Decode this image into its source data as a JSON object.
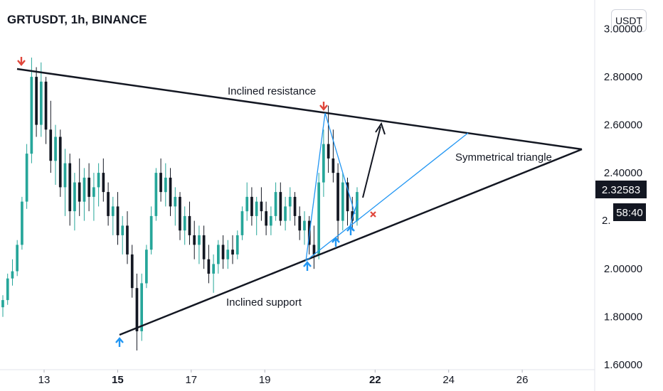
{
  "header": {
    "title": "GRTUSDT, 1h, BINANCE",
    "currency_button": "USDT"
  },
  "chart_data": {
    "type": "candlestick",
    "symbol": "GRTUSDT",
    "interval": "1h",
    "exchange": "BINANCE",
    "y_ticks": [
      "3.00000",
      "2.80000",
      "2.60000",
      "2.40000",
      "2.00000",
      "1.80000",
      "1.60000"
    ],
    "y_range": [
      1.58,
      3.12
    ],
    "x_ticks": [
      {
        "label": "13",
        "day": 13,
        "bold": false
      },
      {
        "label": "15",
        "day": 15,
        "bold": true
      },
      {
        "label": "17",
        "day": 17,
        "bold": false
      },
      {
        "label": "19",
        "day": 19,
        "bold": false
      },
      {
        "label": "22",
        "day": 22,
        "bold": true
      },
      {
        "label": "24",
        "day": 24,
        "bold": false
      },
      {
        "label": "26",
        "day": 26,
        "bold": false
      }
    ],
    "current_price": "2.32583",
    "current_price_value": 2.32583,
    "countdown": "58:40",
    "countdown_partial_label": "2.",
    "colors": {
      "up": "#26a69a",
      "down": "#131722",
      "wick": "#131722",
      "marker_down": "#e0463b",
      "marker_up": "#2196f3",
      "trendline": "#131722",
      "channel": "#2196f3"
    },
    "candles": [
      [
        1.84,
        1.89,
        1.8,
        1.87
      ],
      [
        1.87,
        1.98,
        1.85,
        1.96
      ],
      [
        1.96,
        2.04,
        1.93,
        1.99
      ],
      [
        1.99,
        2.12,
        1.97,
        2.1
      ],
      [
        2.1,
        2.3,
        2.08,
        2.28
      ],
      [
        2.28,
        2.52,
        2.25,
        2.48
      ],
      [
        2.48,
        2.88,
        2.44,
        2.8
      ],
      [
        2.8,
        2.84,
        2.55,
        2.6
      ],
      [
        2.6,
        2.86,
        2.55,
        2.78
      ],
      [
        2.78,
        2.8,
        2.52,
        2.58
      ],
      [
        2.58,
        2.7,
        2.4,
        2.45
      ],
      [
        2.45,
        2.6,
        2.35,
        2.55
      ],
      [
        2.55,
        2.58,
        2.3,
        2.34
      ],
      [
        2.34,
        2.5,
        2.22,
        2.44
      ],
      [
        2.44,
        2.48,
        2.18,
        2.24
      ],
      [
        2.24,
        2.4,
        2.16,
        2.36
      ],
      [
        2.36,
        2.46,
        2.22,
        2.28
      ],
      [
        2.28,
        2.42,
        2.2,
        2.38
      ],
      [
        2.38,
        2.44,
        2.24,
        2.3
      ],
      [
        2.3,
        2.4,
        2.2,
        2.34
      ],
      [
        2.34,
        2.44,
        2.26,
        2.4
      ],
      [
        2.4,
        2.46,
        2.28,
        2.32
      ],
      [
        2.32,
        2.36,
        2.18,
        2.22
      ],
      [
        2.22,
        2.3,
        2.14,
        2.26
      ],
      [
        2.26,
        2.32,
        2.1,
        2.14
      ],
      [
        2.14,
        2.22,
        2.06,
        2.18
      ],
      [
        2.18,
        2.24,
        2.02,
        2.06
      ],
      [
        2.06,
        2.1,
        1.88,
        1.92
      ],
      [
        1.92,
        1.98,
        1.66,
        1.74
      ],
      [
        1.74,
        1.98,
        1.7,
        1.94
      ],
      [
        1.94,
        2.1,
        1.92,
        2.08
      ],
      [
        2.08,
        2.26,
        2.06,
        2.22
      ],
      [
        2.22,
        2.42,
        2.2,
        2.4
      ],
      [
        2.4,
        2.46,
        2.28,
        2.32
      ],
      [
        2.32,
        2.44,
        2.26,
        2.38
      ],
      [
        2.38,
        2.42,
        2.22,
        2.26
      ],
      [
        2.26,
        2.34,
        2.18,
        2.3
      ],
      [
        2.3,
        2.32,
        2.12,
        2.16
      ],
      [
        2.16,
        2.26,
        2.1,
        2.22
      ],
      [
        2.22,
        2.28,
        2.1,
        2.14
      ],
      [
        2.14,
        2.2,
        2.04,
        2.1
      ],
      [
        2.1,
        2.18,
        2.02,
        2.14
      ],
      [
        2.14,
        2.18,
        2.0,
        2.04
      ],
      [
        2.04,
        2.1,
        1.94,
        1.98
      ],
      [
        1.98,
        2.06,
        1.9,
        2.02
      ],
      [
        2.02,
        2.12,
        1.98,
        2.1
      ],
      [
        2.1,
        2.14,
        2.0,
        2.04
      ],
      [
        2.04,
        2.12,
        2.0,
        2.08
      ],
      [
        2.08,
        2.14,
        2.02,
        2.06
      ],
      [
        2.06,
        2.16,
        2.04,
        2.14
      ],
      [
        2.14,
        2.26,
        2.12,
        2.24
      ],
      [
        2.24,
        2.36,
        2.2,
        2.3
      ],
      [
        2.3,
        2.34,
        2.18,
        2.22
      ],
      [
        2.22,
        2.3,
        2.14,
        2.28
      ],
      [
        2.28,
        2.34,
        2.2,
        2.24
      ],
      [
        2.24,
        2.28,
        2.14,
        2.18
      ],
      [
        2.18,
        2.26,
        2.14,
        2.22
      ],
      [
        2.22,
        2.36,
        2.2,
        2.32
      ],
      [
        2.32,
        2.36,
        2.18,
        2.2
      ],
      [
        2.2,
        2.3,
        2.16,
        2.26
      ],
      [
        2.26,
        2.34,
        2.2,
        2.3
      ],
      [
        2.3,
        2.32,
        2.18,
        2.22
      ],
      [
        2.22,
        2.26,
        2.12,
        2.16
      ],
      [
        2.16,
        2.24,
        2.1,
        2.2
      ],
      [
        2.2,
        2.22,
        2.06,
        2.1
      ],
      [
        2.1,
        2.18,
        2.0,
        2.06
      ],
      [
        2.06,
        2.4,
        2.04,
        2.36
      ],
      [
        2.36,
        2.58,
        2.3,
        2.52
      ],
      [
        2.52,
        2.68,
        2.4,
        2.46
      ],
      [
        2.46,
        2.58,
        2.36,
        2.4
      ],
      [
        2.4,
        2.44,
        2.12,
        2.2
      ],
      [
        2.2,
        2.4,
        2.16,
        2.36
      ],
      [
        2.36,
        2.38,
        2.18,
        2.24
      ],
      [
        2.24,
        2.3,
        2.16,
        2.2
      ],
      [
        2.2,
        2.34,
        2.18,
        2.32
      ]
    ],
    "annotations": {
      "resistance_label": "Inclined resistance",
      "support_label": "Inclined support",
      "pattern_label": "Symmetrical triangle"
    }
  }
}
